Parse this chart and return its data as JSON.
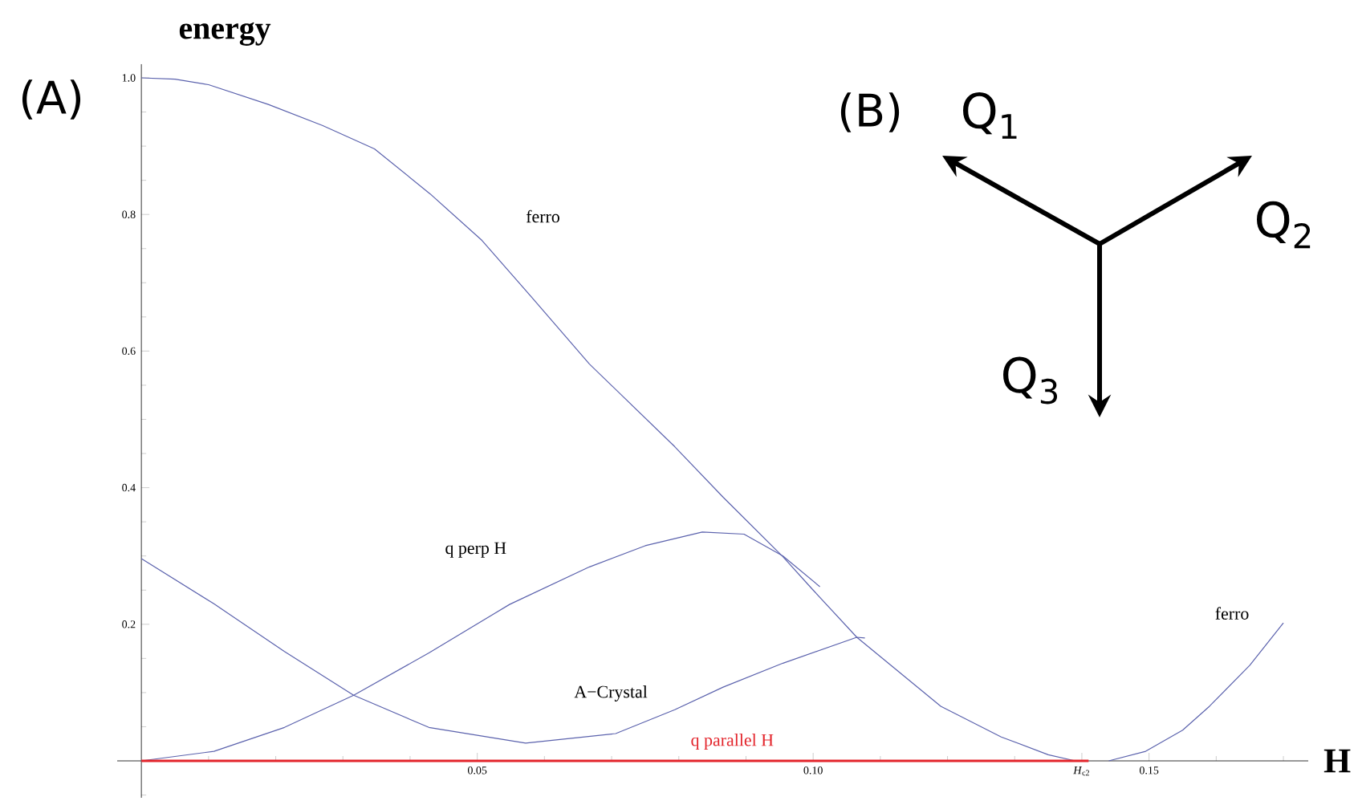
{
  "chart_data": {
    "type": "line",
    "xlabel": "H",
    "ylabel": "energy",
    "marker": "none",
    "line_style": "solid",
    "annotations": [
      "(A)",
      "(B)",
      "Q$_{1}$",
      "Q$_{2}$",
      "Q$_{3}$"
    ],
    "xlim": [
      -0.0036,
      0.1737
    ],
    "ylim": [
      -0.054,
      1.02
    ],
    "xticks": [
      {
        "value": 0.01,
        "label": null
      },
      {
        "value": 0.02,
        "label": null
      },
      {
        "value": 0.03,
        "label": null
      },
      {
        "value": 0.04,
        "label": null
      },
      0.05,
      {
        "value": 0.06,
        "label": null
      },
      {
        "value": 0.07,
        "label": null
      },
      {
        "value": 0.08,
        "label": null
      },
      {
        "value": 0.09,
        "label": null
      },
      {
        "value": 0.1,
        "label": "0.10"
      },
      {
        "value": 0.11,
        "label": null
      },
      {
        "value": 0.12,
        "label": null
      },
      {
        "value": 0.13,
        "label": null
      },
      {
        "value": 0.14,
        "label": "*H*$_{c2}$"
      },
      0.15,
      {
        "value": 0.16,
        "label": null
      },
      {
        "value": 0.17,
        "label": null
      }
    ],
    "yticks": [
      {
        "value": -0.05,
        "label": null
      },
      {
        "value": 0.05,
        "label": null
      },
      {
        "value": 0.1,
        "label": null
      },
      {
        "value": 0.15,
        "label": null
      },
      0.2,
      {
        "value": 0.25,
        "label": null
      },
      {
        "value": 0.3,
        "label": null
      },
      {
        "value": 0.35,
        "label": null
      },
      0.4,
      {
        "value": 0.45,
        "label": null
      },
      {
        "value": 0.5,
        "label": null
      },
      {
        "value": 0.55,
        "label": null
      },
      0.6,
      {
        "value": 0.65,
        "label": null
      },
      {
        "value": 0.7,
        "label": null
      },
      {
        "value": 0.75,
        "label": null
      },
      0.8,
      {
        "value": 0.85,
        "label": null
      },
      {
        "value": 0.9,
        "label": null
      },
      {
        "value": 0.95,
        "label": null
      },
      {
        "value": 1,
        "label": "1.0"
      }
    ],
    "series": [
      {
        "name": "ferro",
        "color": "#5b62ad",
        "x": [
          0,
          0.005,
          0.01,
          0.0189,
          0.027,
          0.0347,
          0.043,
          0.0507,
          0.058,
          0.0667,
          0.0794,
          0.0866,
          0.0955,
          0.1,
          0.1065,
          0.119,
          0.128,
          0.135,
          0.139
        ],
        "values": [
          1.0,
          0.998,
          0.99,
          0.961,
          0.93,
          0.896,
          0.83,
          0.762,
          0.68,
          0.581,
          0.46,
          0.386,
          0.299,
          0.25,
          0.181,
          0.08,
          0.035,
          0.009,
          0.0
        ]
      },
      {
        "name": "q perp H",
        "color": "#5b62ad",
        "x": [
          0,
          0.0108,
          0.0213,
          0.0316,
          0.0428,
          0.0548,
          0.0667,
          0.075,
          0.0835,
          0.0897,
          0.0955,
          0.101
        ],
        "values": [
          0,
          0.014,
          0.049,
          0.096,
          0.158,
          0.229,
          0.284,
          0.315,
          0.335,
          0.332,
          0.3,
          0.255
        ]
      },
      {
        "name": "A−Crystal",
        "color": "#5b62ad",
        "x": [
          0,
          0.0108,
          0.0213,
          0.0316,
          0.0428,
          0.0572,
          0.0706,
          0.0794,
          0.0866,
          0.0955,
          0.1065,
          0.1077
        ],
        "values": [
          0.296,
          0.23,
          0.16,
          0.096,
          0.049,
          0.026,
          0.04,
          0.075,
          0.108,
          0.143,
          0.181,
          0.18
        ]
      },
      {
        "name": "q parallel H",
        "color": "#e3242b",
        "x": [
          0,
          0.141
        ],
        "values": [
          0,
          0
        ]
      },
      {
        "name": "ferro",
        "color": "#5b62ad",
        "x": [
          0.144,
          0.1495,
          0.155,
          0.159,
          0.165,
          0.17
        ],
        "values": [
          0,
          0.014,
          0.045,
          0.08,
          0.14,
          0.202
        ]
      }
    ]
  }
}
